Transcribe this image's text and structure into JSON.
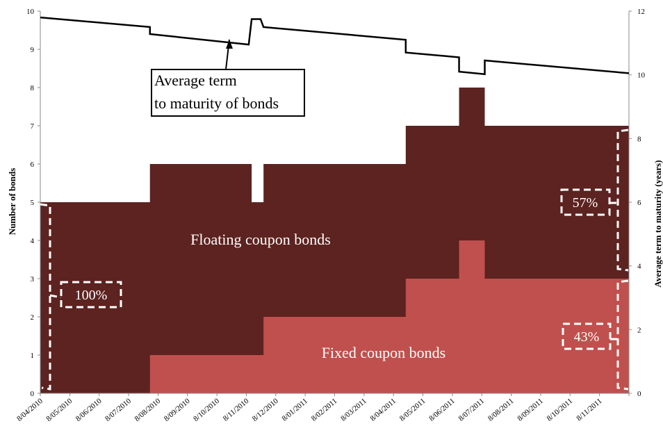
{
  "chart_data": {
    "type": "area",
    "title": "",
    "ylabel": "Number of bonds",
    "y2label": "Average term to maturity (years)",
    "ylim": [
      0,
      10
    ],
    "y2lim": [
      0,
      12
    ],
    "yticks": [
      0,
      1,
      2,
      3,
      4,
      5,
      6,
      7,
      8,
      9,
      10
    ],
    "y2ticks": [
      0,
      2,
      4,
      6,
      8,
      10,
      12
    ],
    "x_tick_labels": [
      "8/04/2010",
      "8/05/2010",
      "8/06/2010",
      "8/07/2010",
      "8/08/2010",
      "8/09/2010",
      "8/10/2010",
      "8/11/2010",
      "8/12/2010",
      "8/01/2011",
      "8/02/2011",
      "8/03/2011",
      "8/04/2011",
      "8/05/2011",
      "8/06/2011",
      "8/07/2011",
      "8/08/2011",
      "8/09/2011",
      "8/10/2011",
      "8/11/2011"
    ],
    "x_range": [
      "2010-04-08",
      "2011-11-25"
    ],
    "series": [
      {
        "name": "Fixed coupon bonds",
        "color": "#c0504d",
        "steps": [
          {
            "date": "2010-04-08",
            "value": 0
          },
          {
            "date": "2010-07-28",
            "value": 1
          },
          {
            "date": "2010-11-20",
            "value": 2
          },
          {
            "date": "2011-04-13",
            "value": 3
          },
          {
            "date": "2011-06-06",
            "value": 4
          },
          {
            "date": "2011-07-02",
            "value": 3
          },
          {
            "date": "2011-11-25",
            "value": 3
          }
        ]
      },
      {
        "name": "Floating coupon bonds",
        "color": "#5c2320",
        "total_steps": [
          {
            "date": "2010-04-08",
            "value": 5
          },
          {
            "date": "2010-07-28",
            "value": 6
          },
          {
            "date": "2010-11-08",
            "value": 5
          },
          {
            "date": "2010-11-20",
            "value": 6
          },
          {
            "date": "2011-04-13",
            "value": 7
          },
          {
            "date": "2011-06-06",
            "value": 8
          },
          {
            "date": "2011-07-02",
            "value": 7
          },
          {
            "date": "2011-11-25",
            "value": 7
          }
        ]
      },
      {
        "name": "Average term to maturity of bonds",
        "axis": "right",
        "color": "#000000",
        "points": [
          {
            "date": "2010-04-08",
            "value": 11.8
          },
          {
            "date": "2010-07-28",
            "value": 11.5
          },
          {
            "date": "2010-07-28",
            "value": 11.28
          },
          {
            "date": "2010-11-05",
            "value": 10.95
          },
          {
            "date": "2010-11-08",
            "value": 11.75
          },
          {
            "date": "2010-11-17",
            "value": 11.75
          },
          {
            "date": "2010-11-20",
            "value": 11.5
          },
          {
            "date": "2011-04-13",
            "value": 11.1
          },
          {
            "date": "2011-04-13",
            "value": 10.7
          },
          {
            "date": "2011-06-06",
            "value": 10.55
          },
          {
            "date": "2011-06-06",
            "value": 10.1
          },
          {
            "date": "2011-07-02",
            "value": 10.02
          },
          {
            "date": "2011-07-02",
            "value": 10.45
          },
          {
            "date": "2011-11-25",
            "value": 10.05
          }
        ]
      }
    ],
    "region_labels": {
      "floating": "Floating coupon bonds",
      "fixed": "Fixed coupon bonds"
    },
    "callout": "Average term to maturity of bonds",
    "annotations": {
      "start_share": "100%",
      "end_floating_share": "57%",
      "end_fixed_share": "43%"
    }
  }
}
